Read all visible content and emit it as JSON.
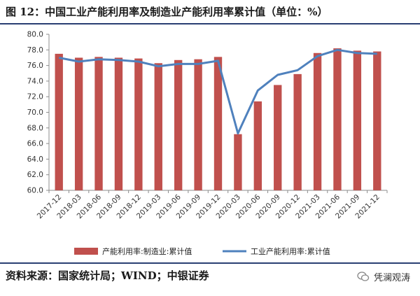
{
  "title": "图 12：中国工业产能利用率及制造业产能利用率累计值（单位：%）",
  "source": "资料来源：国家统计局；WIND；中银证券",
  "watermark": "凭澜观涛",
  "colors": {
    "bar": "#c0504d",
    "line": "#4f81bd",
    "rule": "#2a3f73"
  },
  "chart_data": {
    "type": "bar",
    "categories": [
      "2017-12",
      "2018-03",
      "2018-06",
      "2018-09",
      "2018-12",
      "2019-03",
      "2019-06",
      "2019-09",
      "2019-12",
      "2020-03",
      "2020-06",
      "2020-09",
      "2020-12",
      "2021-03",
      "2021-06",
      "2021-09",
      "2021-12"
    ],
    "series": [
      {
        "name": "产能利用率:制造业:累计值",
        "type": "bar",
        "color": "#c0504d",
        "values": [
          77.5,
          77.0,
          77.1,
          77.0,
          76.9,
          76.3,
          76.7,
          76.8,
          77.1,
          67.2,
          71.4,
          73.5,
          74.9,
          77.6,
          78.2,
          77.9,
          77.8
        ]
      },
      {
        "name": "工业产能利用率:累计值",
        "type": "line",
        "color": "#4f81bd",
        "values": [
          77.0,
          76.5,
          76.8,
          76.7,
          76.5,
          75.9,
          76.2,
          76.2,
          76.6,
          67.3,
          72.8,
          74.8,
          75.4,
          77.2,
          78.0,
          77.6,
          77.5
        ]
      }
    ],
    "ylim": [
      60.0,
      80.0
    ],
    "ytick_step": 2.0,
    "yticks": [
      "60.0",
      "62.0",
      "64.0",
      "66.0",
      "68.0",
      "70.0",
      "72.0",
      "74.0",
      "76.0",
      "78.0",
      "80.0"
    ],
    "xlabel": "",
    "ylabel": "",
    "grid": false,
    "legend": "bottom"
  }
}
